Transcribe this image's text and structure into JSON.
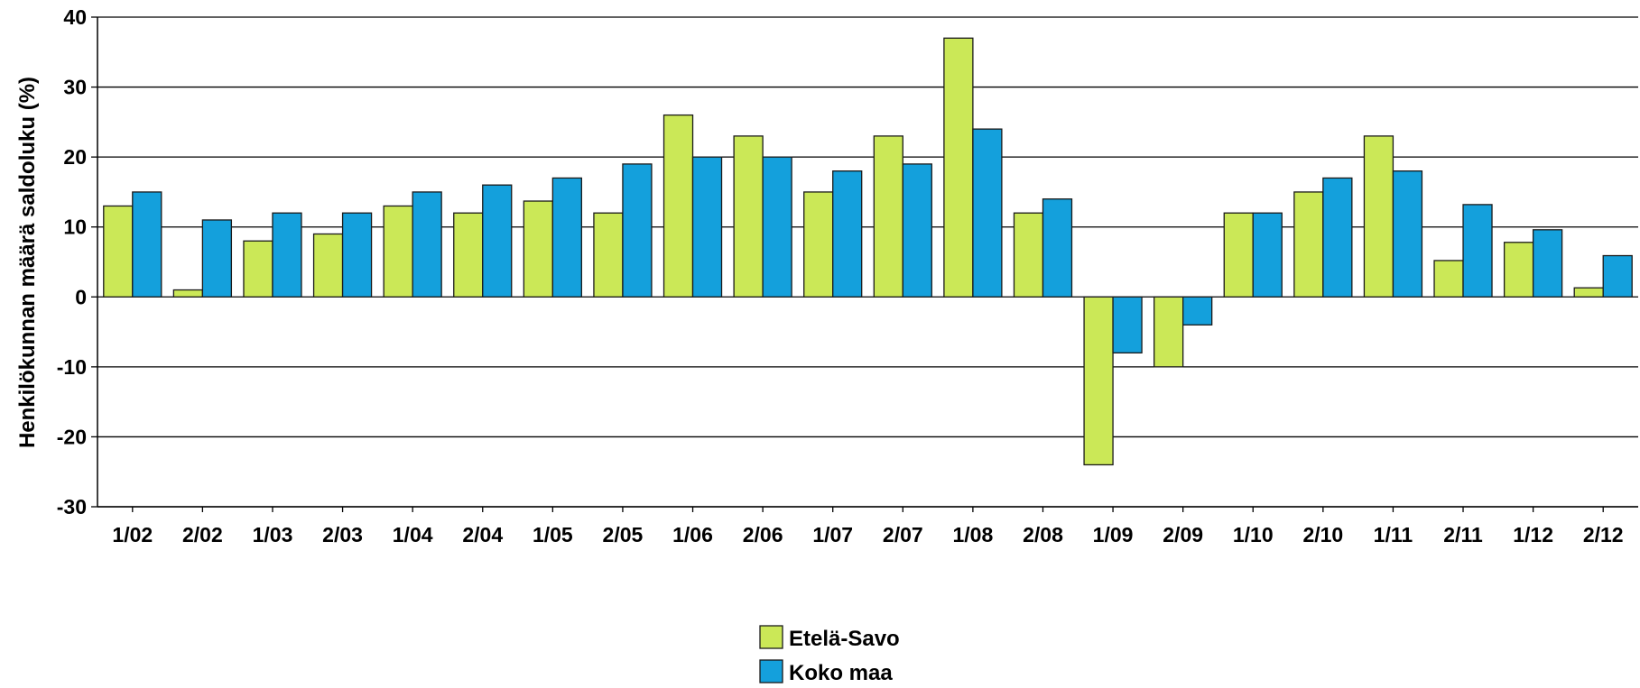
{
  "chart_data": {
    "type": "bar",
    "title": "",
    "xlabel": "",
    "ylabel": "Henkilökunnan määrä saldoluku (%)",
    "ylim": [
      -30,
      40
    ],
    "yticks": [
      40,
      30,
      20,
      10,
      0,
      -10,
      -20,
      -30
    ],
    "grid": true,
    "legend_position": "bottom-center",
    "categories": [
      "1/02",
      "2/02",
      "1/03",
      "2/03",
      "1/04",
      "2/04",
      "1/05",
      "2/05",
      "1/06",
      "2/06",
      "1/07",
      "2/07",
      "1/08",
      "2/08",
      "1/09",
      "2/09",
      "1/10",
      "2/10",
      "1/11",
      "2/11",
      "1/12",
      "2/12"
    ],
    "series": [
      {
        "name": "Etelä-Savo",
        "color": "#cbe857",
        "values": [
          13,
          1,
          8,
          9,
          13,
          12,
          13.7,
          12,
          26,
          23,
          15,
          23,
          37,
          12,
          -24,
          -10,
          12,
          15,
          23,
          5.2,
          7.8,
          1.3
        ]
      },
      {
        "name": "Koko maa",
        "color": "#14a0dc",
        "values": [
          15,
          11,
          12,
          12,
          15,
          16,
          17,
          19,
          20,
          20,
          18,
          19,
          24,
          14,
          -8,
          -4,
          12,
          17,
          18,
          13.2,
          9.6,
          5.9
        ]
      }
    ]
  }
}
